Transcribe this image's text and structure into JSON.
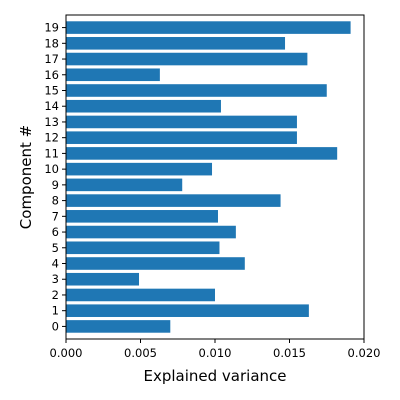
{
  "chart_data": {
    "type": "bar",
    "orientation": "horizontal",
    "xlabel": "Explained variance",
    "ylabel": "Component #",
    "xlim": [
      0,
      0.02
    ],
    "x_ticks": [
      "0.000",
      "0.005",
      "0.010",
      "0.015",
      "0.020"
    ],
    "categories": [
      "0",
      "1",
      "2",
      "3",
      "4",
      "5",
      "6",
      "7",
      "8",
      "9",
      "10",
      "11",
      "12",
      "13",
      "14",
      "15",
      "16",
      "17",
      "18",
      "19"
    ],
    "values": [
      0.007,
      0.0163,
      0.01,
      0.0049,
      0.012,
      0.0103,
      0.0114,
      0.0102,
      0.0144,
      0.0078,
      0.0098,
      0.0182,
      0.0155,
      0.0155,
      0.0104,
      0.0175,
      0.0063,
      0.0162,
      0.0147,
      0.0191
    ],
    "bar_color": "#1f77b4",
    "grid": false
  }
}
